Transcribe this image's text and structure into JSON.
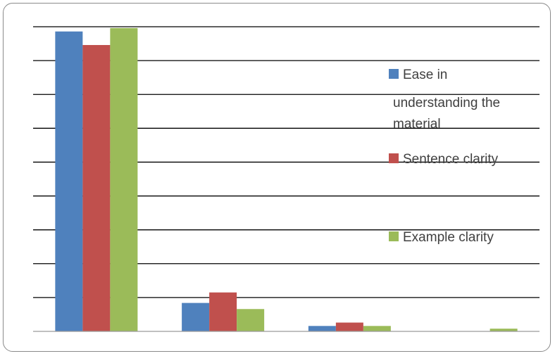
{
  "chart_data": {
    "type": "bar",
    "categories": [
      "",
      "",
      "",
      ""
    ],
    "series": [
      {
        "name": "Ease in understanding the material",
        "color": "#4F81BD",
        "values": [
          88.6,
          8.4,
          1.6,
          0
        ]
      },
      {
        "name": "Sentence clarity",
        "color": "#C0504D",
        "values": [
          84.6,
          11.5,
          2.6,
          0
        ]
      },
      {
        "name": "Example clarity",
        "color": "#9BBB59",
        "values": [
          89.6,
          6.6,
          1.6,
          0.8
        ]
      }
    ],
    "ylim": [
      0,
      90
    ],
    "gridlines": 9,
    "grid": true,
    "legend_position": "right",
    "legend_labels": [
      [
        "Ease in",
        "understanding the",
        "material"
      ],
      [
        "Sentence clarity"
      ],
      [
        "Example clarity"
      ]
    ],
    "title": "",
    "xlabel": "",
    "ylabel": ""
  }
}
